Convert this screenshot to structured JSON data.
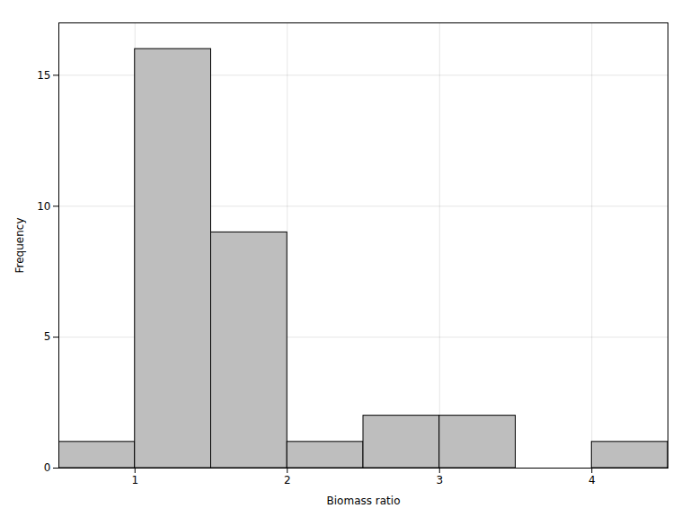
{
  "chart_data": {
    "type": "histogram",
    "xlabel": "Biomass ratio",
    "ylabel": "Frequency",
    "bins": [
      0.5,
      1.0,
      1.5,
      2.0,
      2.5,
      3.0,
      3.5,
      4.0,
      4.5
    ],
    "values": [
      1,
      16,
      9,
      1,
      2,
      2,
      0,
      1
    ],
    "color": "#BEBEBE",
    "xlim": [
      0.5,
      4.5
    ],
    "ylim": [
      0,
      17
    ],
    "xticks": [
      1,
      2,
      3,
      4
    ],
    "yticks": [
      0,
      5,
      10,
      15
    ],
    "grid": true
  }
}
